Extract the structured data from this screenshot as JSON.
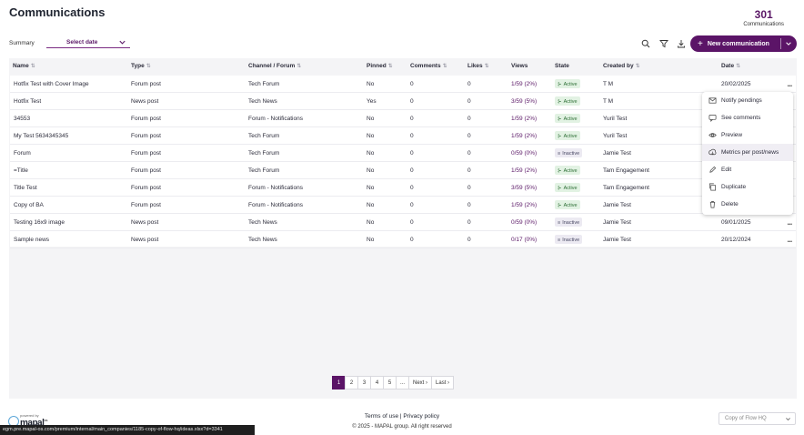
{
  "header": {
    "title": "Communications",
    "count": "301",
    "count_label": "Communications"
  },
  "filters": {
    "summary_label": "Summary",
    "date_placeholder": "Select date"
  },
  "toolbar": {
    "search_icon": "search-icon",
    "filter_icon": "filter-icon",
    "download_icon": "download-icon",
    "new_label": "New communication"
  },
  "table": {
    "columns": [
      {
        "label": "Name",
        "sortable": true
      },
      {
        "label": "Type",
        "sortable": true
      },
      {
        "label": "Channel / Forum",
        "sortable": true
      },
      {
        "label": "Pinned",
        "sortable": true
      },
      {
        "label": "Comments",
        "sortable": true
      },
      {
        "label": "Likes",
        "sortable": true
      },
      {
        "label": "Views",
        "sortable": false
      },
      {
        "label": "State",
        "sortable": false
      },
      {
        "label": "Created by",
        "sortable": true
      },
      {
        "label": "Date",
        "sortable": true
      }
    ],
    "rows": [
      {
        "name": "Hotfix Test with Cover Image",
        "type": "Forum post",
        "channel": "Tech Forum",
        "pinned": "No",
        "comments": "0",
        "likes": "0",
        "views": "1/59 (2%)",
        "state": "Active",
        "created_by": "T M",
        "date": "20/02/2025"
      },
      {
        "name": "Hotfix Test",
        "type": "News post",
        "channel": "Tech News",
        "pinned": "Yes",
        "comments": "0",
        "likes": "0",
        "views": "3/59 (5%)",
        "state": "Active",
        "created_by": "T M",
        "date": ""
      },
      {
        "name": "34553",
        "type": "Forum post",
        "channel": "Forum - Notifications",
        "pinned": "No",
        "comments": "0",
        "likes": "0",
        "views": "1/59 (2%)",
        "state": "Active",
        "created_by": "Yuril Test",
        "date": ""
      },
      {
        "name": "My Test 5634345345",
        "type": "Forum post",
        "channel": "Tech Forum",
        "pinned": "No",
        "comments": "0",
        "likes": "0",
        "views": "1/59 (2%)",
        "state": "Active",
        "created_by": "Yuril Test",
        "date": ""
      },
      {
        "name": "Forum",
        "type": "Forum post",
        "channel": "Tech Forum",
        "pinned": "No",
        "comments": "0",
        "likes": "0",
        "views": "0/59 (0%)",
        "state": "Inactive",
        "created_by": "Jamie Test",
        "date": ""
      },
      {
        "name": "=Title",
        "type": "Forum post",
        "channel": "Tech Forum",
        "pinned": "No",
        "comments": "0",
        "likes": "0",
        "views": "1/59 (2%)",
        "state": "Active",
        "created_by": "Tam Engagement",
        "date": ""
      },
      {
        "name": "Title Test",
        "type": "Forum post",
        "channel": "Forum - Notifications",
        "pinned": "No",
        "comments": "0",
        "likes": "0",
        "views": "3/59 (5%)",
        "state": "Active",
        "created_by": "Tam Engagement",
        "date": ""
      },
      {
        "name": "Copy of BA",
        "type": "Forum post",
        "channel": "Forum - Notifications",
        "pinned": "No",
        "comments": "0",
        "likes": "0",
        "views": "1/59 (2%)",
        "state": "Active",
        "created_by": "Jamie Test",
        "date": ""
      },
      {
        "name": "Testing 16x9 image",
        "type": "News post",
        "channel": "Tech News",
        "pinned": "No",
        "comments": "0",
        "likes": "0",
        "views": "0/59 (0%)",
        "state": "Inactive",
        "created_by": "Jamie Test",
        "date": "09/01/2025"
      },
      {
        "name": "Sample news",
        "type": "News post",
        "channel": "Tech News",
        "pinned": "No",
        "comments": "0",
        "likes": "0",
        "views": "0/17 (0%)",
        "state": "Inactive",
        "created_by": "Jamie Test",
        "date": "20/12/2024"
      }
    ]
  },
  "context_menu": {
    "items": [
      {
        "label": "Notify pendings",
        "icon": "mail-icon"
      },
      {
        "label": "See comments",
        "icon": "comment-icon"
      },
      {
        "label": "Preview",
        "icon": "eye-icon"
      },
      {
        "label": "Metrics per post/news",
        "icon": "metrics-icon"
      },
      {
        "label": "Edit",
        "icon": "pencil-icon"
      },
      {
        "label": "Duplicate",
        "icon": "duplicate-icon"
      },
      {
        "label": "Delete",
        "icon": "trash-icon"
      }
    ],
    "highlighted_index": 3
  },
  "pagination": {
    "pages": [
      "1",
      "2",
      "3",
      "4",
      "5",
      "..."
    ],
    "current": "1",
    "next": "Next ›",
    "last": "Last ›"
  },
  "footer": {
    "terms": "Terms of use",
    "divider": "|",
    "privacy": "Privacy policy",
    "copyright": "© 2025 - MAPAL group. All right reserved",
    "powered_by": "powered by",
    "logo_text": "mapal",
    "logo_suffix": "os",
    "company": "Copy of Flow HQ",
    "status_url": "egm.pre.mapal-os.com/premium/internal/main_companies/1185-copy-of-flow-hq/ideas.xlsx?d=3341"
  },
  "colors": {
    "accent": "#5b1467",
    "active_bg": "#e2f2e3",
    "inactive_bg": "#eceaf2"
  }
}
